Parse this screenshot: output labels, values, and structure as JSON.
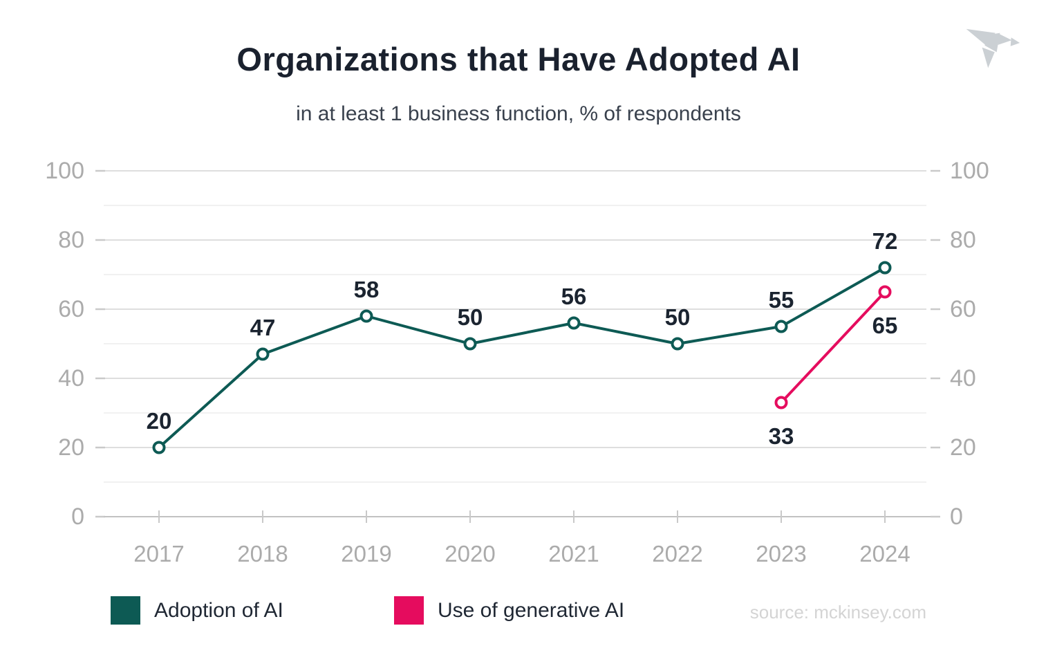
{
  "chart_data": {
    "type": "line",
    "title": "Organizations that Have Adopted AI",
    "subtitle": "in at least 1 business function, % of respondents",
    "x": [
      "2017",
      "2018",
      "2019",
      "2020",
      "2021",
      "2022",
      "2023",
      "2024"
    ],
    "series": [
      {
        "name": "Adoption of AI",
        "color": "#0d5a54",
        "values": [
          20,
          47,
          58,
          50,
          56,
          50,
          55,
          72
        ],
        "label_position": "above"
      },
      {
        "name": "Use of generative AI",
        "color": "#e50c5e",
        "values": [
          null,
          null,
          null,
          null,
          null,
          null,
          33,
          65
        ],
        "label_position": "below"
      }
    ],
    "ylim": [
      0,
      100
    ],
    "y_major_step": 20,
    "y_minor_step": 10,
    "grid": true,
    "y_axis_sides": "both",
    "legend_position": "bottom",
    "source": "source: mckinsey.com"
  },
  "colors": {
    "grid_minor": "#f1f1f1",
    "grid_major": "#dedede",
    "axis_line": "#c2c2c2",
    "tick": "#c9c9c9",
    "axis_label": "#ababab",
    "data_label": "#1b2430",
    "logo": "#cbd0d4"
  }
}
